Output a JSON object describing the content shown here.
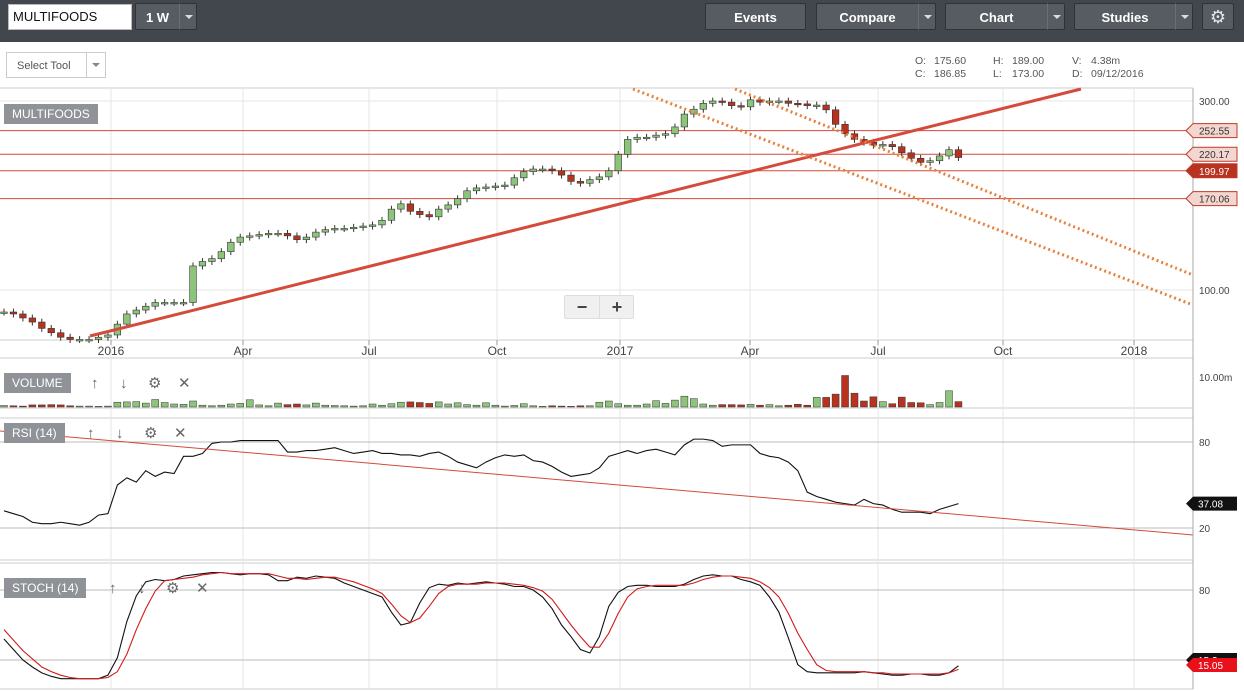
{
  "toolbar": {
    "symbol": "MULTIFOODS",
    "interval": "1 W",
    "events_label": "Events",
    "compare_label": "Compare",
    "chart_label": "Chart",
    "studies_label": "Studies",
    "select_tool": "Select Tool"
  },
  "ohlc": {
    "o_label": "O:",
    "o_value": "175.60",
    "c_label": "C:",
    "c_value": "186.85",
    "h_label": "H:",
    "h_value": "189.00",
    "l_label": "L:",
    "l_value": "173.00",
    "v_label": "V:",
    "v_value": "4.38m",
    "d_label": "D:",
    "d_value": "09/12/2016"
  },
  "panels": {
    "main_label": "MULTIFOODS",
    "volume_label": "VOLUME",
    "rsi_label": "RSI (14)",
    "stoch_label": "STOCH (14)"
  },
  "colors": {
    "up": "#8cc57a",
    "down": "#b8331f",
    "trend": "#d44a3b",
    "channel": "#e8813d",
    "topbar": "#42474e"
  },
  "chart_data": [
    {
      "type": "candlestick",
      "yscale": "log",
      "ylim": [
        60,
        320
      ],
      "y_ticks": [
        "300.00",
        "100.00"
      ],
      "x_ticks": [
        "2016",
        "Apr",
        "Jul",
        "Oct",
        "2017",
        "Apr",
        "Jul",
        "Oct",
        "2018"
      ],
      "price_tags": [
        "252.55",
        "220.17",
        "199.97",
        "170.06"
      ],
      "horizontal_levels": [
        252.55,
        220.17,
        199.97,
        170.06
      ],
      "closes": [
        88,
        87,
        85,
        83,
        80,
        78,
        76,
        75,
        75,
        75,
        76,
        77,
        82,
        87,
        89,
        91,
        93,
        93,
        93,
        93,
        115,
        118,
        120,
        125,
        132,
        136,
        137,
        138,
        139,
        139,
        137,
        134,
        136,
        140,
        142,
        143,
        143,
        144,
        145,
        146,
        150,
        160,
        165,
        158,
        155,
        153,
        160,
        164,
        170,
        178,
        181,
        182,
        183,
        184,
        192,
        199,
        202,
        202,
        200,
        195,
        188,
        186,
        190,
        193,
        200,
        220,
        240,
        243,
        243,
        246,
        248,
        258,
        278,
        286,
        296,
        300,
        298,
        292,
        290,
        302,
        298,
        300,
        300,
        296,
        295,
        292,
        293,
        285,
        262,
        248,
        240,
        236,
        232,
        233,
        230,
        222,
        215,
        210,
        212,
        218,
        226,
        216
      ]
    },
    {
      "type": "bar",
      "name": "VOLUME",
      "y_ticks": [
        "10.00m"
      ],
      "values": [
        0.5,
        0.4,
        0.3,
        0.7,
        0.7,
        0.8,
        0.7,
        0.4,
        0.3,
        0.3,
        0.2,
        0.3,
        1.6,
        1.7,
        1.8,
        1.3,
        2.5,
        1.5,
        1.0,
        0.9,
        2.0,
        0.6,
        0.4,
        0.6,
        1.0,
        1.2,
        2.4,
        0.7,
        0.4,
        1.3,
        0.8,
        1.0,
        0.7,
        1.3,
        0.6,
        0.5,
        0.4,
        0.3,
        0.4,
        1.0,
        0.6,
        1.1,
        1.6,
        1.7,
        1.5,
        1.2,
        1.7,
        1.0,
        1.4,
        0.8,
        0.6,
        1.4,
        0.6,
        0.3,
        0.5,
        1.1,
        0.4,
        0.2,
        0.4,
        0.3,
        0.2,
        0.4,
        0.4,
        1.6,
        2.0,
        1.1,
        0.6,
        0.6,
        1.0,
        2.1,
        1.2,
        2.3,
        3.6,
        2.8,
        1.0,
        0.6,
        0.8,
        0.8,
        0.7,
        0.9,
        0.6,
        0.8,
        0.4,
        0.6,
        0.9,
        0.6,
        3.2,
        3.2,
        4.3,
        10.5,
        4.6,
        2.0,
        3.4,
        1.8,
        1.1,
        3.3,
        1.5,
        1.4,
        0.8,
        1.5,
        5.4,
        1.8
      ]
    },
    {
      "type": "line",
      "name": "RSI (14)",
      "y_ticks": [
        "80",
        "20"
      ],
      "current": "37.08",
      "values": [
        32,
        30,
        28,
        24,
        23,
        23,
        24,
        23,
        22,
        24,
        29,
        30,
        50,
        55,
        52,
        60,
        56,
        59,
        58,
        70,
        70,
        72,
        79,
        80,
        80,
        81,
        81,
        81,
        81,
        81,
        73,
        73,
        74,
        74,
        75,
        76,
        74,
        72,
        73,
        74,
        72,
        72,
        71,
        71,
        70,
        72,
        73,
        70,
        66,
        64,
        62,
        66,
        69,
        71,
        70,
        71,
        67,
        66,
        63,
        59,
        56,
        57,
        58,
        62,
        70,
        72,
        74,
        72,
        74,
        75,
        73,
        71,
        78,
        82,
        82,
        81,
        77,
        78,
        78,
        78,
        72,
        70,
        69,
        66,
        60,
        45,
        42,
        40,
        38,
        37,
        36,
        40,
        37,
        36,
        33,
        31,
        31,
        31,
        30,
        33,
        35,
        37
      ]
    },
    {
      "type": "line",
      "name": "STOCH (14)",
      "y_ticks": [
        "80"
      ],
      "current_k": "15.?",
      "current_d": "15.05",
      "series": [
        {
          "values": [
            38,
            29,
            20,
            14,
            9,
            6,
            4,
            4,
            4,
            4,
            4,
            7,
            22,
            53,
            75,
            87,
            89,
            88,
            89,
            92,
            93,
            94,
            95,
            95,
            94,
            93,
            94,
            94,
            93,
            88,
            88,
            91,
            90,
            92,
            91,
            90,
            86,
            83,
            80,
            77,
            74,
            61,
            50,
            52,
            69,
            82,
            85,
            84,
            86,
            85,
            86,
            87,
            86,
            85,
            83,
            83,
            80,
            74,
            64,
            50,
            40,
            29,
            26,
            40,
            66,
            78,
            83,
            84,
            84,
            83,
            83,
            83,
            85,
            89,
            92,
            93,
            92,
            92,
            89,
            87,
            84,
            74,
            61,
            39,
            16,
            10,
            9,
            9,
            9,
            9,
            9,
            10,
            9,
            8,
            7,
            7,
            8,
            8,
            7,
            7,
            9,
            15
          ]
        },
        {
          "values": [
            46,
            37,
            28,
            21,
            14,
            10,
            7,
            5,
            4,
            4,
            4,
            5,
            10,
            25,
            46,
            64,
            79,
            88,
            89,
            90,
            91,
            93,
            94,
            95,
            94,
            94,
            94,
            94,
            94,
            92,
            90,
            90,
            89,
            90,
            91,
            91,
            89,
            87,
            84,
            81,
            77,
            68,
            58,
            52,
            56,
            66,
            77,
            83,
            85,
            85,
            85,
            86,
            86,
            86,
            85,
            84,
            82,
            79,
            72,
            61,
            50,
            40,
            31,
            31,
            43,
            60,
            74,
            81,
            83,
            84,
            84,
            84,
            84,
            86,
            89,
            91,
            92,
            92,
            91,
            90,
            87,
            82,
            74,
            60,
            43,
            29,
            16,
            11,
            10,
            10,
            10,
            10,
            9,
            9,
            8,
            8,
            8,
            8,
            8,
            8,
            9,
            12
          ]
        }
      ]
    }
  ]
}
